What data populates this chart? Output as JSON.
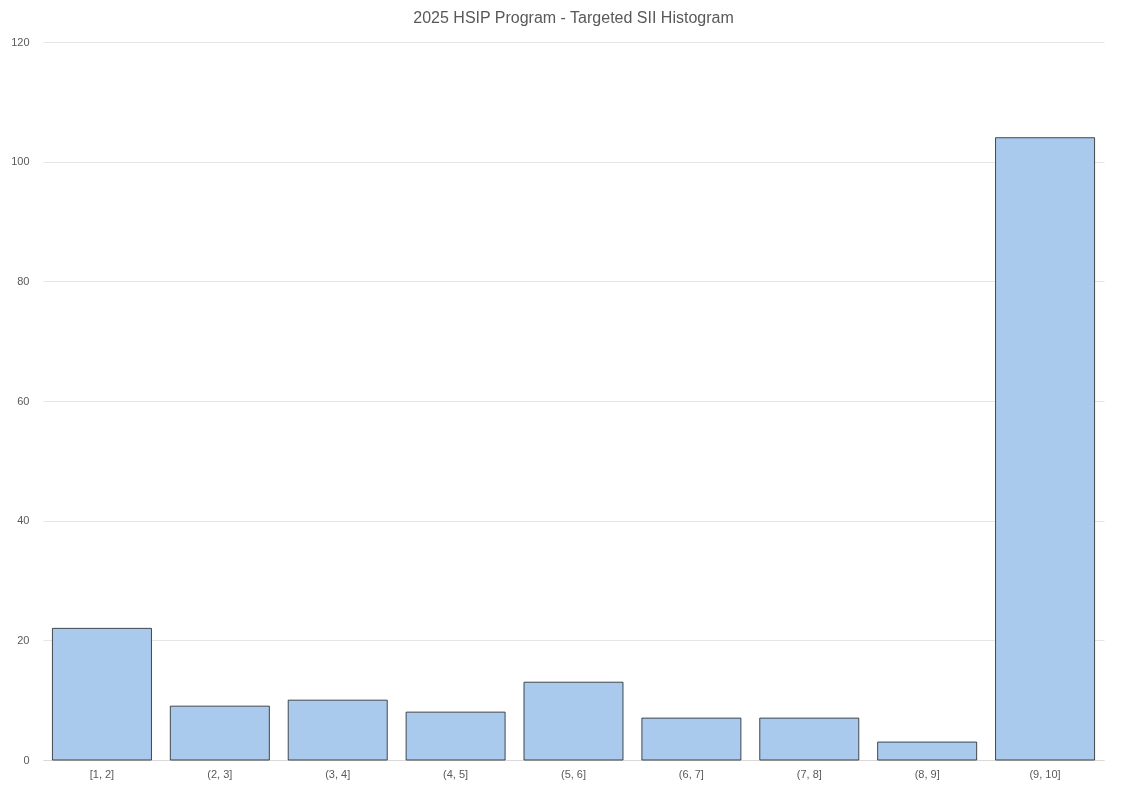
{
  "chart_data": {
    "type": "bar",
    "title": "2025 HSIP Program - Targeted SII Histogram",
    "categories": [
      "[1, 2]",
      "(2, 3]",
      "(3, 4]",
      "(4, 5]",
      "(5, 6]",
      "(6, 7]",
      "(7, 8]",
      "(8, 9]",
      "(9, 10]"
    ],
    "values": [
      22,
      9,
      10,
      8,
      13,
      7,
      7,
      3,
      104
    ],
    "color": "#a9caec",
    "ylim": [
      0,
      120
    ],
    "yticks": [
      0,
      20,
      40,
      60,
      80,
      100,
      120
    ],
    "grid": "y"
  }
}
